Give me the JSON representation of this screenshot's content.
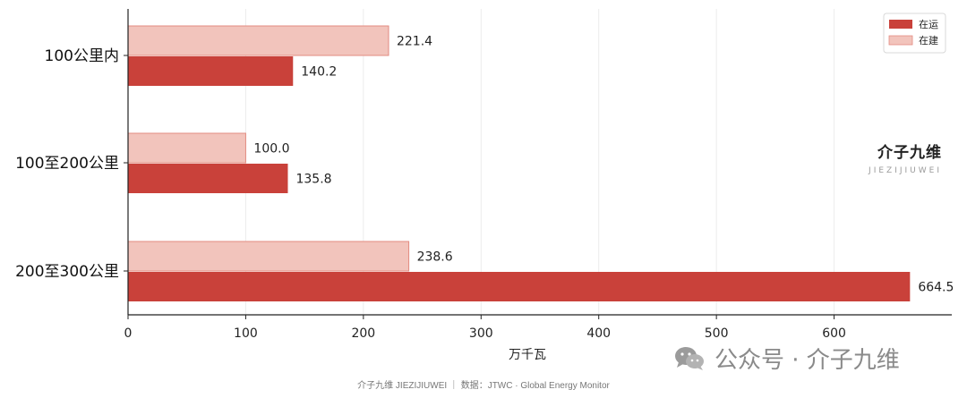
{
  "chart_data": {
    "type": "bar",
    "orientation": "horizontal",
    "categories": [
      "100公里内",
      "100至200公里",
      "200至300公里"
    ],
    "series": [
      {
        "name": "在建",
        "values": [
          221.4,
          100.0,
          238.6
        ]
      },
      {
        "name": "在运",
        "values": [
          140.2,
          135.8,
          664.5
        ]
      }
    ],
    "xlabel": "万千瓦",
    "xlim": [
      0,
      700
    ],
    "xticks": [
      0,
      100,
      200,
      300,
      400,
      500,
      600
    ],
    "grid": "vertical",
    "legend_position": "top-right",
    "legend_order": [
      "在运",
      "在建"
    ]
  },
  "colors": {
    "在运": "#c9413a",
    "在建": "#f2c4bc",
    "在建_border": "#e38b80"
  },
  "brand": {
    "name": "介子九维",
    "sub": "JIEZIJIUWEI"
  },
  "wechat": {
    "text": "公众号 · 介子九维",
    "icon": "wechat-icon"
  },
  "footer": {
    "text": "介子九维 JIEZIJIUWEI ｜ 数据：JTWC · Global Energy Monitor"
  }
}
